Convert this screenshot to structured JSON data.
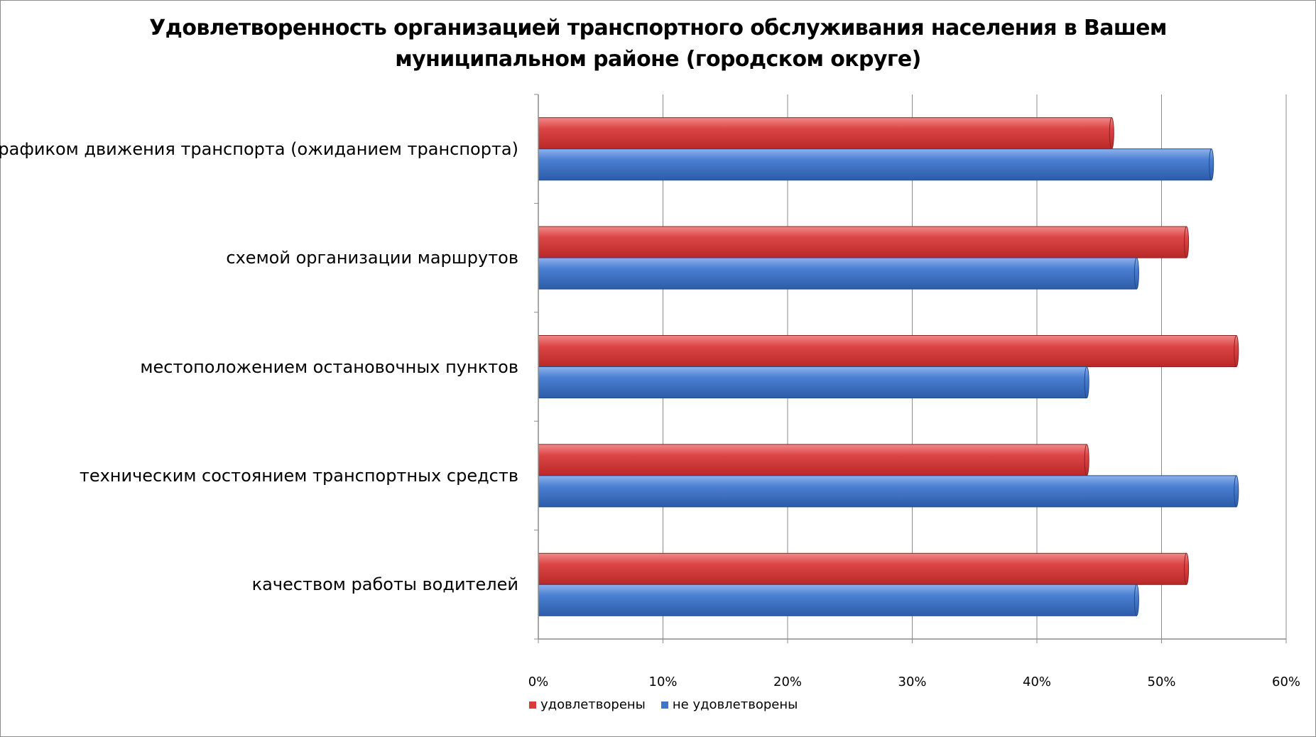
{
  "chart_data": {
    "type": "bar",
    "orientation": "horizontal",
    "title": "Удовлетворенность организацией транспортного обслуживания населения в Вашем муниципальном районе (городском округе)",
    "title_lines": [
      "Удовлетворенность организацией транспортного обслуживания населения в Вашем",
      "муниципальном районе (городском округе)"
    ],
    "categories": [
      "графиком движения транспорта (ожиданием транспорта)",
      "схемой организации маршрутов",
      "местоположением остановочных пунктов",
      "техническим состоянием транспортных средств",
      "качеством работы водителей"
    ],
    "series": [
      {
        "name": "удовлетворены",
        "color": "#d93b3b",
        "values": [
          46,
          52,
          56,
          44,
          52
        ]
      },
      {
        "name": "не удовлетворены",
        "color": "#3f74c8",
        "values": [
          54,
          48,
          44,
          56,
          48
        ]
      }
    ],
    "xlim": [
      0,
      60
    ],
    "x_ticks": [
      0,
      10,
      20,
      30,
      40,
      50,
      60
    ],
    "x_tick_labels": [
      "0%",
      "10%",
      "20%",
      "30%",
      "40%",
      "50%",
      "60%"
    ],
    "unit": "%",
    "grid": true,
    "legend_position": "bottom"
  }
}
